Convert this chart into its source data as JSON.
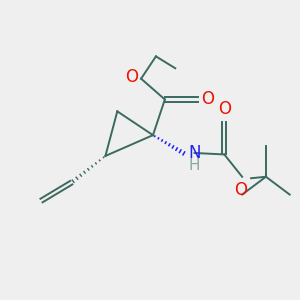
{
  "bg_color": "#efefef",
  "bond_color": "#3a6a60",
  "o_color": "#ee1100",
  "n_color": "#2222ee",
  "h_color": "#8aaa9a",
  "lw": 1.4,
  "figsize": [
    3.0,
    3.0
  ],
  "dpi": 100,
  "xlim": [
    0,
    10
  ],
  "ylim": [
    0,
    10
  ],
  "font_size": 12
}
